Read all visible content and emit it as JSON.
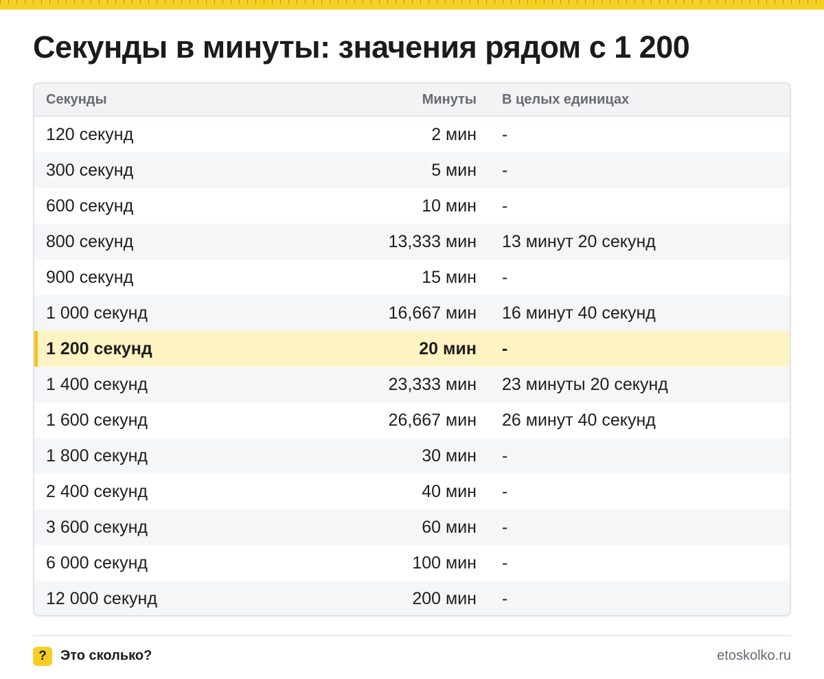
{
  "title": "Секунды в минуты: значения рядом с 1 200",
  "table": {
    "headers": {
      "seconds": "Секунды",
      "minutes": "Минуты",
      "whole": "В целых единицах"
    },
    "rows": [
      {
        "seconds": "120 секунд",
        "minutes": "2 мин",
        "whole": "-"
      },
      {
        "seconds": "300 секунд",
        "minutes": "5 мин",
        "whole": "-"
      },
      {
        "seconds": "600 секунд",
        "minutes": "10 мин",
        "whole": "-"
      },
      {
        "seconds": "800 секунд",
        "minutes": "13,333 мин",
        "whole": "13 минут 20 секунд"
      },
      {
        "seconds": "900 секунд",
        "minutes": "15 мин",
        "whole": "-"
      },
      {
        "seconds": "1 000 секунд",
        "minutes": "16,667 мин",
        "whole": "16 минут 40 секунд"
      },
      {
        "seconds": "1 200 секунд",
        "minutes": "20 мин",
        "whole": "-"
      },
      {
        "seconds": "1 400 секунд",
        "minutes": "23,333 мин",
        "whole": "23 минуты 20 секунд"
      },
      {
        "seconds": "1 600 секунд",
        "minutes": "26,667 мин",
        "whole": "26 минут 40 секунд"
      },
      {
        "seconds": "1 800 секунд",
        "minutes": "30 мин",
        "whole": "-"
      },
      {
        "seconds": "2 400 секунд",
        "minutes": "40 мин",
        "whole": "-"
      },
      {
        "seconds": "3 600 секунд",
        "minutes": "60 мин",
        "whole": "-"
      },
      {
        "seconds": "6 000 секунд",
        "minutes": "100 мин",
        "whole": "-"
      },
      {
        "seconds": "12 000 секунд",
        "minutes": "200 мин",
        "whole": "-"
      }
    ],
    "highlighted_row": 6
  },
  "footer": {
    "logo_glyph": "?",
    "brand": "Это сколько?",
    "site": "etoskolko.ru"
  },
  "colors": {
    "accent": "#f7cf24",
    "highlight_row": "#fef3c2",
    "header_bg": "#f2f3f5",
    "muted_text": "#666b73"
  }
}
